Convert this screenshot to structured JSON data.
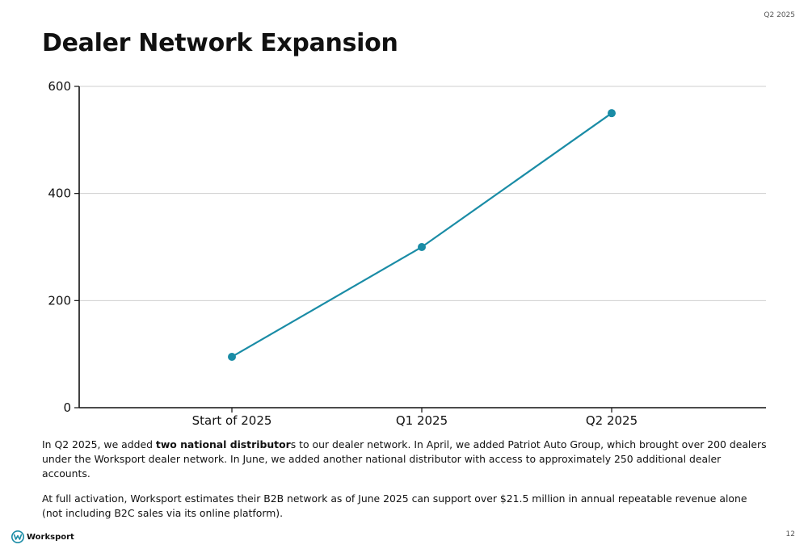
{
  "header": {
    "corner_label": "Q2 2025",
    "title": "Dealer Network Expansion"
  },
  "chart_data": {
    "type": "line",
    "title": "",
    "xlabel": "",
    "ylabel": "",
    "categories": [
      "Start of 2025",
      "Q1 2025",
      "Q2 2025"
    ],
    "series": [
      {
        "values": [
          95,
          300,
          550
        ]
      }
    ],
    "ylim": [
      0,
      600
    ],
    "yticks": [
      0,
      200,
      400,
      600
    ],
    "grid": true,
    "line_color": "#1a8ca6"
  },
  "body": {
    "p1_before": "In Q2 2025, we added ",
    "p1_bold": "two national distributor",
    "p1_after": "s to our dealer network. In April, we added Patriot Auto Group, which brought over 200 dealers under the Worksport dealer network. In June, we added another national distributor with access to approximately 250 additional dealer accounts.",
    "p2": "At full activation, Worksport estimates their B2B network as of June 2025 can support over $21.5 million in annual repeatable revenue alone (not including B2C sales via its online platform)."
  },
  "footer": {
    "logo_text": "Worksport",
    "logo_icon": "worksport-w-logo",
    "logo_color": "#1a8ca6",
    "page_number": "12"
  }
}
